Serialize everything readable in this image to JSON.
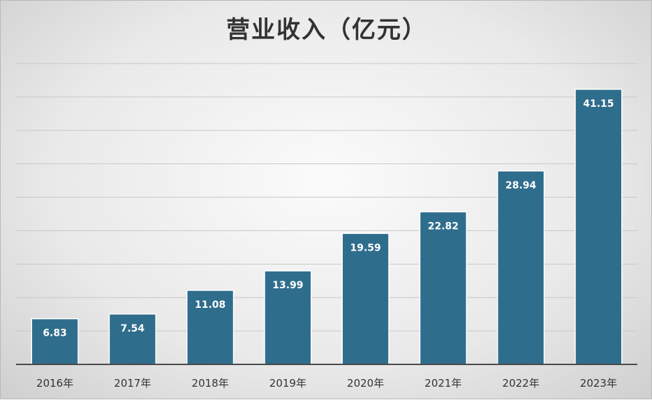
{
  "chart_data": {
    "type": "bar",
    "title": "营业收入（亿元）",
    "xlabel": "",
    "ylabel": "",
    "categories": [
      "2016年",
      "2017年",
      "2018年",
      "2019年",
      "2020年",
      "2021年",
      "2022年",
      "2023年"
    ],
    "values": [
      6.83,
      7.54,
      11.08,
      13.99,
      19.59,
      22.82,
      28.94,
      41.15
    ],
    "ylim": [
      0,
      45
    ],
    "grid": true,
    "data_labels": true,
    "bar_color": "#2f6d8c",
    "legend": "none"
  }
}
